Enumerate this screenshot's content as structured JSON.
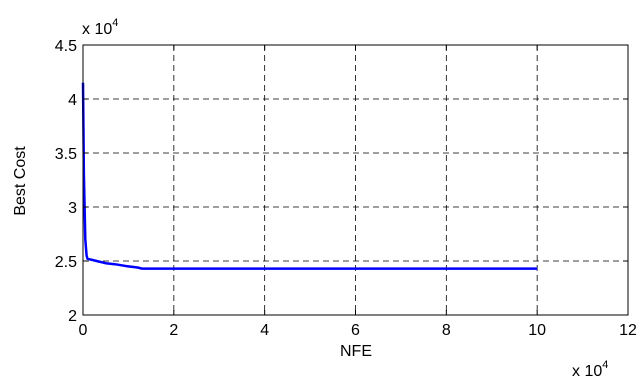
{
  "chart_data": {
    "type": "line",
    "xlabel": "NFE",
    "ylabel": "Best Cost",
    "x_multiplier": {
      "base": "x 10",
      "exponent": "4"
    },
    "y_multiplier": {
      "base": "x 10",
      "exponent": "4"
    },
    "xlim": [
      0,
      12
    ],
    "ylim": [
      2,
      4.5
    ],
    "x_ticks": [
      "0",
      "2",
      "4",
      "6",
      "8",
      "10",
      "12"
    ],
    "y_ticks": [
      "2",
      "2.5",
      "3",
      "3.5",
      "4",
      "4.5"
    ],
    "grid": true,
    "grid_style": "dashed",
    "series": [
      {
        "color": "#0000ff",
        "x": [
          0,
          0.02,
          0.05,
          0.08,
          0.1,
          0.2,
          0.3,
          0.5,
          0.7,
          1.0,
          1.2,
          1.3,
          2,
          4,
          6,
          8,
          10
        ],
        "y": [
          4.15,
          3.3,
          2.7,
          2.55,
          2.52,
          2.51,
          2.5,
          2.48,
          2.47,
          2.45,
          2.44,
          2.43,
          2.43,
          2.43,
          2.43,
          2.43,
          2.43
        ]
      }
    ]
  }
}
